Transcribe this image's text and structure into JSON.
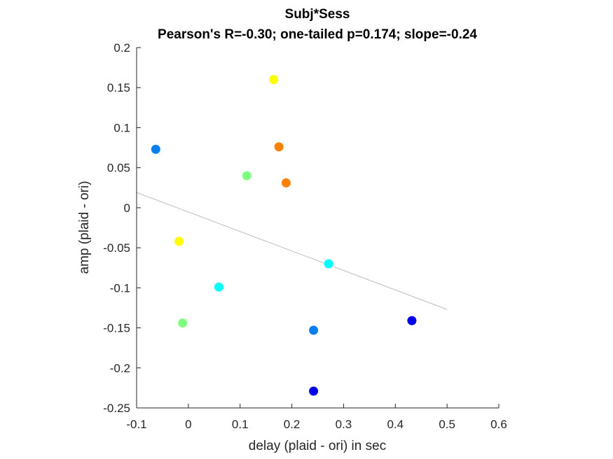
{
  "chart_data": {
    "type": "scatter",
    "title": "Subj*Sess",
    "subtitle": "Pearson's R=-0.30; one-tailed p=0.174; slope=-0.24",
    "xlabel": "delay (plaid - ori) in sec",
    "ylabel": "amp (plaid - ori)",
    "xlim": [
      -0.1,
      0.6
    ],
    "ylim": [
      -0.25,
      0.2
    ],
    "x_ticks": [
      "-0.1",
      "0",
      "0.1",
      "0.2",
      "0.3",
      "0.4",
      "0.5",
      "0.6"
    ],
    "y_ticks": [
      "0.2",
      "0.15",
      "0.1",
      "0.05",
      "0",
      "-0.05",
      "-0.1",
      "-0.15",
      "-0.2",
      "-0.25"
    ],
    "grid": false,
    "points": [
      {
        "x": -0.063,
        "y": 0.073,
        "color": "#0a7ff0"
      },
      {
        "x": 0.242,
        "y": -0.153,
        "color": "#0a7ff0"
      },
      {
        "x": 0.165,
        "y": 0.16,
        "color": "#ffff00"
      },
      {
        "x": -0.018,
        "y": -0.042,
        "color": "#ffff00"
      },
      {
        "x": 0.175,
        "y": 0.076,
        "color": "#ff7f00"
      },
      {
        "x": 0.189,
        "y": 0.031,
        "color": "#ff7f00"
      },
      {
        "x": 0.113,
        "y": 0.04,
        "color": "#7fff7f"
      },
      {
        "x": -0.011,
        "y": -0.144,
        "color": "#7fff7f"
      },
      {
        "x": 0.271,
        "y": -0.07,
        "color": "#00ffff"
      },
      {
        "x": 0.059,
        "y": -0.099,
        "color": "#00ffff"
      },
      {
        "x": 0.432,
        "y": -0.141,
        "color": "#0000e6"
      },
      {
        "x": 0.242,
        "y": -0.229,
        "color": "#0000e6"
      }
    ],
    "fit_line": {
      "x": [
        -0.1,
        0.5
      ],
      "y": [
        0.019,
        -0.127
      ],
      "color": "#bdbdbd"
    }
  }
}
